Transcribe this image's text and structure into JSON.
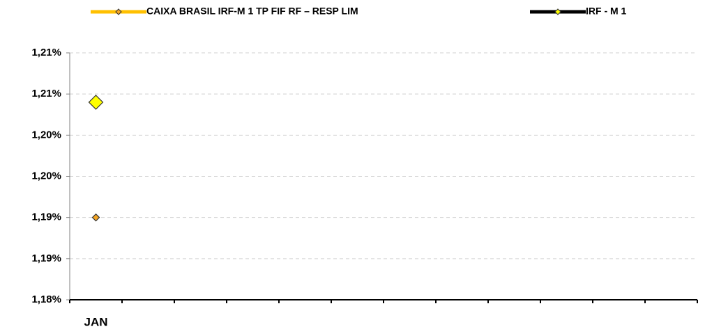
{
  "chart_data": {
    "type": "line",
    "categories": [
      "JAN",
      null,
      null,
      null,
      null,
      null,
      null,
      null,
      null,
      null,
      null,
      null
    ],
    "series": [
      {
        "name": "CAIXA BRASIL IRF-M 1 TP FIF RF – RESP LIM",
        "color": "#ffc000",
        "marker_color": "#f5a623",
        "values": [
          1.19,
          null,
          null,
          null,
          null,
          null,
          null,
          null,
          null,
          null,
          null,
          null
        ]
      },
      {
        "name": "IRF - M 1",
        "color": "#000000",
        "marker_color": "#ffff00",
        "values": [
          1.204,
          null,
          null,
          null,
          null,
          null,
          null,
          null,
          null,
          null,
          null,
          null
        ]
      }
    ],
    "ylim": [
      1.18,
      1.21
    ],
    "yticks": [
      {
        "value": 1.18,
        "label": "1,18%"
      },
      {
        "value": 1.185,
        "label": "1,19%"
      },
      {
        "value": 1.19,
        "label": "1,19%"
      },
      {
        "value": 1.195,
        "label": "1,20%"
      },
      {
        "value": 1.2,
        "label": "1,20%"
      },
      {
        "value": 1.205,
        "label": "1,21%"
      },
      {
        "value": 1.21,
        "label": "1,21%"
      }
    ],
    "grid": true,
    "legend": "top"
  }
}
